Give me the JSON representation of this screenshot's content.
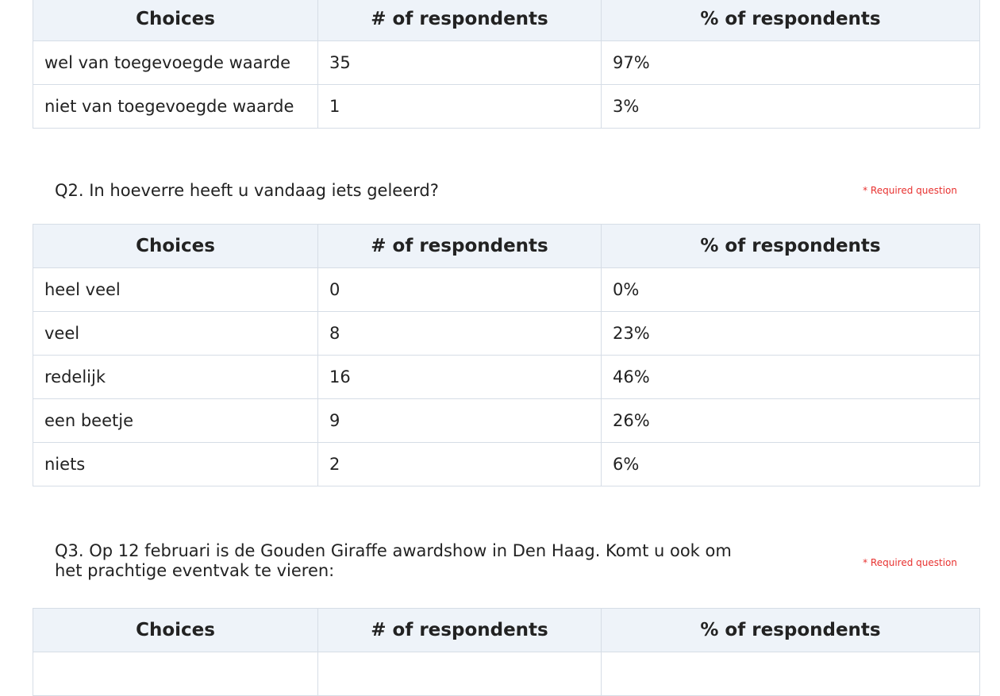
{
  "headers": {
    "choices": "Choices",
    "count": "# of respondents",
    "percent": "% of respondents"
  },
  "required_label": "* Required question",
  "q1": {
    "rows": [
      {
        "choice": "wel van toegevoegde waarde",
        "count": "35",
        "percent": "97%"
      },
      {
        "choice": "niet van toegevoegde waarde",
        "count": "1",
        "percent": "3%"
      }
    ]
  },
  "q2": {
    "question": "Q2. In hoeverre heeft u vandaag iets geleerd?",
    "rows": [
      {
        "choice": "heel veel",
        "count": "0",
        "percent": "0%"
      },
      {
        "choice": "veel",
        "count": "8",
        "percent": "23%"
      },
      {
        "choice": "redelijk",
        "count": "16",
        "percent": "46%"
      },
      {
        "choice": "een beetje",
        "count": "9",
        "percent": "26%"
      },
      {
        "choice": "niets",
        "count": "2",
        "percent": "6%"
      }
    ]
  },
  "q3": {
    "question_line1": "Q3. Op 12 februari is de Gouden Giraffe awardshow in Den Haag. Komt u ook om",
    "question_line2": "het prachtige eventvak te vieren:",
    "rows": []
  }
}
